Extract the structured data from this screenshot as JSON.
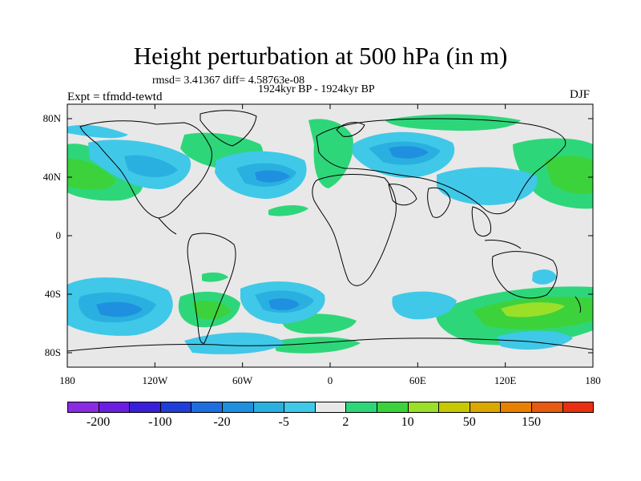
{
  "header": {
    "title": "Height perturbation at 500 hPa (in m)",
    "stats": "rmsd= 3.41367 diff= 4.58763e-08",
    "period": "1924kyr BP - 1924kyr BP",
    "experiment": "Expt = tfmdd-tewtd",
    "season": "DJF"
  },
  "axes": {
    "x_ticks": [
      "180",
      "120W",
      "60W",
      "0",
      "60E",
      "120E",
      "180"
    ],
    "y_ticks": [
      "80N",
      "40N",
      "0",
      "40S",
      "80S"
    ]
  },
  "colorbar": {
    "colors": [
      "#8a2be2",
      "#6a1fe0",
      "#3a1fd8",
      "#1f3fd8",
      "#1f6ee0",
      "#1f90e0",
      "#2ab0e0",
      "#40c8e8",
      "#e8e8e8",
      "#2ed67a",
      "#3cd23c",
      "#9ae028",
      "#c8c800",
      "#dca800",
      "#e88000",
      "#e85a10",
      "#e83010"
    ],
    "labels": [
      "-200",
      "-100",
      "-20",
      "-5",
      "2",
      "10",
      "50",
      "150"
    ]
  },
  "map": {
    "colors": {
      "background": "#e8e8e8",
      "positive_weak": "#2ed67a",
      "positive_mid": "#3cd23c",
      "positive_strong": "#9ae028",
      "negative_weak": "#40c8e8",
      "negative_mid": "#2ab0e0",
      "negative_strong": "#1f90e0"
    }
  }
}
